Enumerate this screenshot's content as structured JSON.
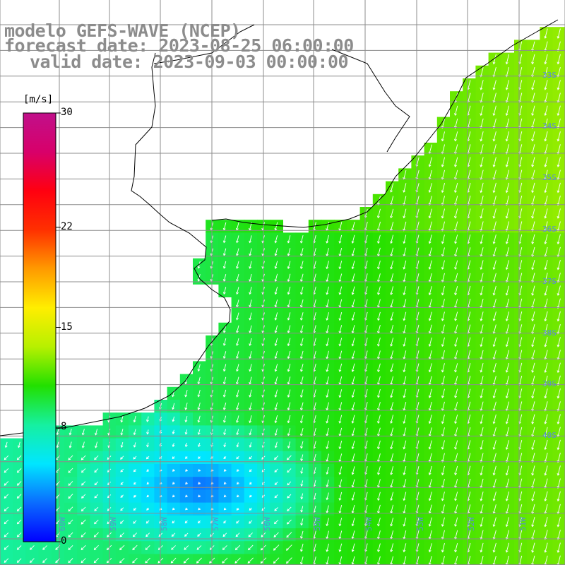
{
  "title": {
    "line1": "modelo GEFS-WAVE (NCEP)",
    "line2": "forecast date: 2023-08-25 06:00:00",
    "line3": "valid date: 2023-09-03 00:00:00"
  },
  "colorbar": {
    "units": "[m/s]",
    "ticks": [
      {
        "value": 30,
        "label": "30"
      },
      {
        "value": 22,
        "label": "22"
      },
      {
        "value": 15,
        "label": "15"
      },
      {
        "value": 8,
        "label": "8"
      },
      {
        "value": 0,
        "label": "0"
      }
    ],
    "gradient_colors": [
      "#0000ff",
      "#0a6cff",
      "#00e6ff",
      "#16f0a0",
      "#22e000",
      "#b7f000",
      "#ffee00",
      "#ff9a00",
      "#ff3000",
      "#ff0010",
      "#d8006a",
      "#c0108a"
    ]
  },
  "map": {
    "variable": "wind speed (m/s) with direction arrows",
    "lat_labels": [
      "33S",
      "34S",
      "35S",
      "36S",
      "37S",
      "38S",
      "39S",
      "40S"
    ],
    "lon_labels": [
      "60W",
      "59W",
      "58W",
      "57W",
      "56W",
      "55W",
      "54W",
      "53W",
      "52W",
      "51W"
    ],
    "land_color": "#ffffff",
    "grid_color": "#8c8c8c",
    "arrow_color": "#ffffff"
  }
}
